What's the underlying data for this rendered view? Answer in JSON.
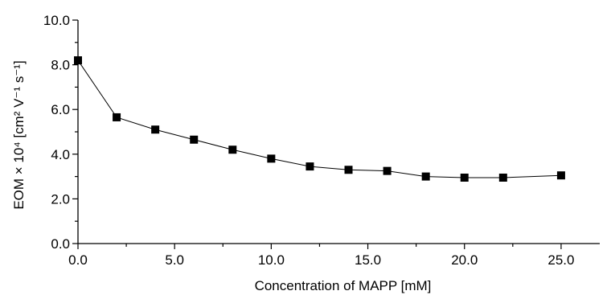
{
  "chart_data": {
    "type": "line",
    "title": "",
    "xlabel": "Concentration of MAPP [mM]",
    "ylabel": "EOM × 10⁴ [cm² V⁻¹ s⁻¹]",
    "xlim": [
      0,
      27
    ],
    "ylim": [
      0,
      10
    ],
    "x_ticks": [
      0,
      5,
      10,
      15,
      20,
      25
    ],
    "x_tick_labels": [
      "0.0",
      "5.0",
      "10.0",
      "15.0",
      "20.0",
      "25.0"
    ],
    "y_ticks": [
      0,
      2,
      4,
      6,
      8,
      10
    ],
    "y_tick_labels": [
      "0.0",
      "2.0",
      "4.0",
      "6.0",
      "8.0",
      "10.0"
    ],
    "grid": false,
    "marker": "filled-square",
    "series": [
      {
        "x": [
          0,
          2,
          4,
          6,
          8,
          10,
          12,
          14,
          16,
          18,
          20,
          22,
          25
        ],
        "y": [
          8.2,
          5.65,
          5.1,
          4.65,
          4.2,
          3.8,
          3.45,
          3.3,
          3.25,
          3.0,
          2.95,
          2.95,
          3.05
        ]
      }
    ]
  }
}
